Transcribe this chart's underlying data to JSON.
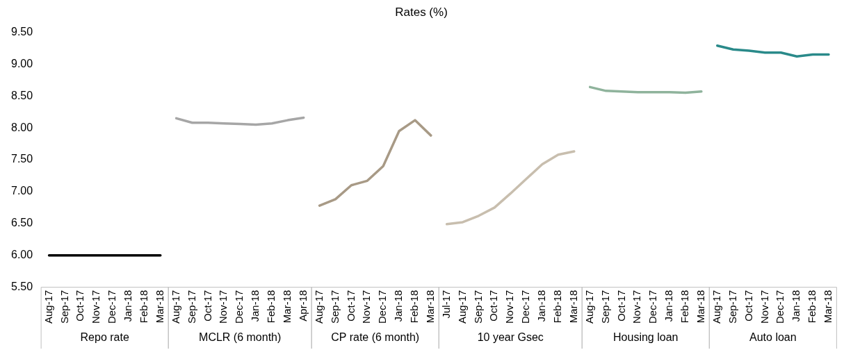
{
  "chart_data": {
    "type": "line",
    "title": "Rates (%)",
    "categories": [
      "Aug-17",
      "Sep-17",
      "Oct-17",
      "Nov-17",
      "Dec-17",
      "Jan-18",
      "Feb-18",
      "Mar-18",
      "Aug-17",
      "Sep-17",
      "Oct-17",
      "Nov-17",
      "Dec-17",
      "Jan-18",
      "Feb-18",
      "Mar-18",
      "Apr-18",
      "Aug-17",
      "Sep-17",
      "Oct-17",
      "Nov-17",
      "Dec-17",
      "Jan-18",
      "Feb-18",
      "Mar-18",
      "Jul-17",
      "Aug-17",
      "Sep-17",
      "Oct-17",
      "Nov-17",
      "Dec-17",
      "Jan-18",
      "Feb-18",
      "Mar-18",
      "Aug-17",
      "Sep-17",
      "Oct-17",
      "Nov-17",
      "Dec-17",
      "Jan-18",
      "Feb-18",
      "Mar-18",
      "Aug-17",
      "Sep-17",
      "Oct-17",
      "Nov-17",
      "Dec-17",
      "Jan-18",
      "Feb-18",
      "Mar-18"
    ],
    "series": [
      {
        "color": "#000000",
        "values": [
          6.0,
          6.0,
          6.0,
          6.0,
          6.0,
          6.0,
          6.0,
          6.0,
          null,
          null,
          null,
          null,
          null,
          null,
          null,
          null,
          null,
          null,
          null,
          null,
          null,
          null,
          null,
          null,
          null,
          null,
          null,
          null,
          null,
          null,
          null,
          null,
          null,
          null,
          null,
          null,
          null,
          null,
          null,
          null,
          null,
          null,
          null,
          null,
          null,
          null,
          null,
          null,
          null,
          null
        ]
      },
      {
        "color": "#a6a6a6",
        "values": [
          null,
          null,
          null,
          null,
          null,
          null,
          null,
          null,
          8.15,
          8.08,
          8.08,
          8.07,
          8.06,
          8.05,
          8.07,
          8.12,
          8.16,
          null,
          null,
          null,
          null,
          null,
          null,
          null,
          null,
          null,
          null,
          null,
          null,
          null,
          null,
          null,
          null,
          null,
          null,
          null,
          null,
          null,
          null,
          null,
          null,
          null,
          null,
          null,
          null,
          null,
          null,
          null,
          null,
          null
        ]
      },
      {
        "color": "#a89a86",
        "values": [
          null,
          null,
          null,
          null,
          null,
          null,
          null,
          null,
          null,
          null,
          null,
          null,
          null,
          null,
          null,
          null,
          null,
          6.78,
          6.88,
          7.1,
          7.17,
          7.4,
          7.95,
          8.12,
          7.88,
          null,
          null,
          null,
          null,
          null,
          null,
          null,
          null,
          null,
          null,
          null,
          null,
          null,
          null,
          null,
          null,
          null,
          null,
          null,
          null,
          null,
          null,
          null,
          null,
          null
        ]
      },
      {
        "color": "#c8beae",
        "values": [
          null,
          null,
          null,
          null,
          null,
          null,
          null,
          null,
          null,
          null,
          null,
          null,
          null,
          null,
          null,
          null,
          null,
          null,
          null,
          null,
          null,
          null,
          null,
          null,
          null,
          6.49,
          6.52,
          6.62,
          6.75,
          6.97,
          7.2,
          7.43,
          7.58,
          7.63,
          null,
          null,
          null,
          null,
          null,
          null,
          null,
          null,
          null,
          null,
          null,
          null,
          null,
          null,
          null,
          null
        ]
      },
      {
        "color": "#8fb39c",
        "values": [
          null,
          null,
          null,
          null,
          null,
          null,
          null,
          null,
          null,
          null,
          null,
          null,
          null,
          null,
          null,
          null,
          null,
          null,
          null,
          null,
          null,
          null,
          null,
          null,
          null,
          null,
          null,
          null,
          null,
          null,
          null,
          null,
          null,
          null,
          8.64,
          8.58,
          8.57,
          8.56,
          8.56,
          8.56,
          8.55,
          8.57,
          null,
          null,
          null,
          null,
          null,
          null,
          null,
          null
        ]
      },
      {
        "color": "#2a8a8a",
        "values": [
          null,
          null,
          null,
          null,
          null,
          null,
          null,
          null,
          null,
          null,
          null,
          null,
          null,
          null,
          null,
          null,
          null,
          null,
          null,
          null,
          null,
          null,
          null,
          null,
          null,
          null,
          null,
          null,
          null,
          null,
          null,
          null,
          null,
          null,
          null,
          null,
          null,
          null,
          null,
          null,
          null,
          null,
          9.29,
          9.23,
          9.21,
          9.18,
          9.18,
          9.12,
          9.15,
          9.15
        ]
      }
    ],
    "ylim": [
      5.5,
      9.5
    ],
    "yticks": [
      {
        "value": 5.5,
        "label": "5.50"
      },
      {
        "value": 6,
        "label": "6.00"
      },
      {
        "value": 6.5,
        "label": "6.50"
      },
      {
        "value": 7,
        "label": "7.00"
      },
      {
        "value": 7.5,
        "label": "7.50"
      },
      {
        "value": 8,
        "label": "8.00"
      },
      {
        "value": 8.5,
        "label": "8.50"
      },
      {
        "value": 9,
        "label": "9.00"
      },
      {
        "value": 9.5,
        "label": "9.50"
      }
    ],
    "annotations": [
      "Repo rate",
      "MCLR (6 month)",
      "CP rate (6 month)",
      "10 year Gsec",
      "Housing loan",
      "Auto loan"
    ],
    "grid": false,
    "legend": false,
    "marker": "none",
    "line_style": "solid"
  }
}
